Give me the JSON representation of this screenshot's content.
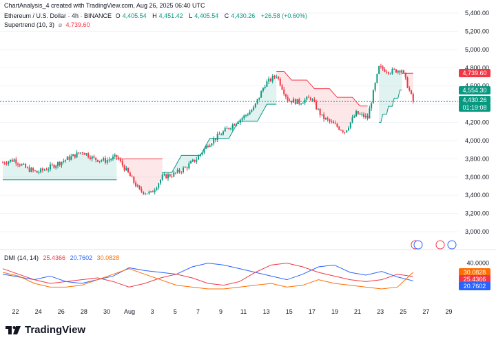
{
  "header": {
    "caption": "ChartAnalysis_4 created with TradingView.com, Aug 26, 2025 06:40 UTC"
  },
  "legend": {
    "symbol": "Ethereum / U.S. Dollar · 4h · BINANCE",
    "o_label": "O",
    "o": "4,405.54",
    "h_label": "H",
    "h": "4,451.42",
    "l_label": "L",
    "l": "4,405.54",
    "c_label": "C",
    "c": "4,430.26",
    "change": "+26.58 (+0.60%)",
    "indicator": "Supertrend (10, 3)",
    "indicator_icon": "hidden-eye-icon",
    "indicator_value": "4,739.60"
  },
  "dmi_legend": {
    "name": "DMI (14, 14)",
    "v1": "25.4366",
    "v2": "20.7602",
    "v3": "30.0828"
  },
  "price_tags": [
    {
      "value": "4,739.60",
      "color": "#f23645"
    },
    {
      "value": "4,554.30",
      "color": "#089981"
    },
    {
      "value": "4,430.26",
      "color": "#089981"
    },
    {
      "value": "01:19:08",
      "color": "#089981"
    }
  ],
  "dmi_tags": [
    {
      "value": "30.0828",
      "color": "#ff6d00"
    },
    {
      "value": "25.4366",
      "color": "#f23645"
    },
    {
      "value": "20.7602",
      "color": "#2962ff"
    }
  ],
  "brand": {
    "name": "TradingView"
  },
  "colors": {
    "up": "#089981",
    "down": "#f23645",
    "dmi_plus": "#2962ff",
    "dmi_minus": "#f23645",
    "adx": "#ff6d00"
  },
  "chart_data": [
    {
      "type": "candlestick",
      "title": "Ethereum / U.S. Dollar · 4h · BINANCE",
      "ylim": [
        3100,
        5500
      ],
      "y_ticks": [
        "5,400.00",
        "5,200.00",
        "5,000.00",
        "4,800.00",
        "4,600.00",
        "4,400.00",
        "4,200.00",
        "4,000.00",
        "3,800.00",
        "3,600.00",
        "3,400.00",
        "3,200.00",
        "3,000.00"
      ],
      "x_ticks": [
        "22",
        "24",
        "26",
        "28",
        "30",
        "Aug",
        "3",
        "5",
        "7",
        "9",
        "11",
        "13",
        "15",
        "17",
        "19",
        "21",
        "23",
        "25",
        "27",
        "29"
      ],
      "close_path": [
        [
          "Jul 21",
          3760
        ],
        [
          "Jul 22",
          3790
        ],
        [
          "Jul 23",
          3700
        ],
        [
          "Jul 24",
          3650
        ],
        [
          "Jul 25",
          3700
        ],
        [
          "Jul 26",
          3760
        ],
        [
          "Jul 27",
          3820
        ],
        [
          "Jul 28",
          3880
        ],
        [
          "Jul 29",
          3800
        ],
        [
          "Jul 30",
          3780
        ],
        [
          "Jul 31",
          3820
        ],
        [
          "Aug 1",
          3640
        ],
        [
          "Aug 2",
          3450
        ],
        [
          "Aug 3",
          3420
        ],
        [
          "Aug 4",
          3600
        ],
        [
          "Aug 5",
          3630
        ],
        [
          "Aug 6",
          3700
        ],
        [
          "Aug 7",
          3800
        ],
        [
          "Aug 8",
          3960
        ],
        [
          "Aug 9",
          4060
        ],
        [
          "Aug 10",
          4160
        ],
        [
          "Aug 11",
          4250
        ],
        [
          "Aug 12",
          4350
        ],
        [
          "Aug 13",
          4620
        ],
        [
          "Aug 14",
          4720
        ],
        [
          "Aug 15",
          4450
        ],
        [
          "Aug 16",
          4420
        ],
        [
          "Aug 17",
          4470
        ],
        [
          "Aug 18",
          4260
        ],
        [
          "Aug 19",
          4180
        ],
        [
          "Aug 20",
          4100
        ],
        [
          "Aug 21",
          4300
        ],
        [
          "Aug 22",
          4250
        ],
        [
          "Aug 23",
          4800
        ],
        [
          "Aug 24",
          4760
        ],
        [
          "Aug 25",
          4780
        ],
        [
          "Aug 26",
          4430
        ]
      ],
      "supertrend": [
        {
          "from": "Jul 21",
          "to": "Jul 31",
          "trend": "up",
          "level": 3570
        },
        {
          "from": "Jul 31",
          "to": "Aug 4",
          "trend": "down",
          "level": 3800
        },
        {
          "from": "Aug 4",
          "to": "Aug 14",
          "trend": "up",
          "level": 3650,
          "end_level": 4400
        },
        {
          "from": "Aug 14",
          "to": "Aug 22",
          "trend": "down",
          "level": 4760,
          "end_level": 4380
        },
        {
          "from": "Aug 23",
          "to": "Aug 25",
          "trend": "up",
          "level": 4200,
          "end_level": 4554.3
        },
        {
          "from": "Aug 25",
          "to": "Aug 26",
          "trend": "down",
          "level": 4739.6
        }
      ]
    },
    {
      "type": "line",
      "title": "DMI (14, 14)",
      "ylim": [
        0,
        45
      ],
      "y_ticks": [
        "40.0000"
      ],
      "series": [
        {
          "name": "+DI",
          "values": [
            28,
            25,
            22,
            26,
            20,
            18,
            22,
            26,
            35,
            32,
            30,
            28,
            36,
            40,
            38,
            34,
            30,
            26,
            22,
            28,
            36,
            38,
            30,
            27,
            31,
            25,
            20.76
          ]
        },
        {
          "name": "-DI",
          "values": [
            34,
            28,
            22,
            18,
            20,
            22,
            24,
            20,
            14,
            18,
            24,
            28,
            24,
            18,
            16,
            20,
            30,
            38,
            40,
            36,
            30,
            26,
            22,
            20,
            22,
            28,
            25.44
          ]
        },
        {
          "name": "ADX",
          "values": [
            30,
            26,
            18,
            14,
            14,
            16,
            22,
            28,
            34,
            28,
            22,
            16,
            14,
            12,
            12,
            14,
            16,
            18,
            14,
            16,
            22,
            18,
            16,
            14,
            12,
            14,
            30.08
          ]
        }
      ]
    }
  ]
}
